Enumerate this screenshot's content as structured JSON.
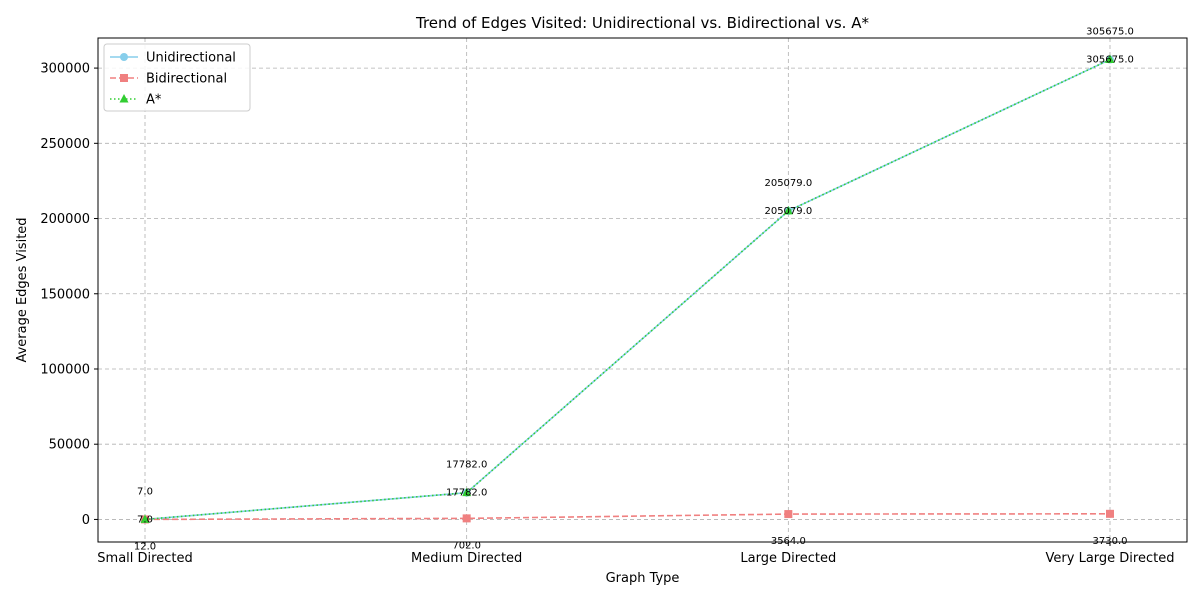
{
  "chart_data": {
    "type": "line",
    "title": "Trend of Edges Visited: Unidirectional vs. Bidirectional vs. A*",
    "xlabel": "Graph Type",
    "ylabel": "Average Edges Visited",
    "categories": [
      "Small Directed",
      "Medium Directed",
      "Large Directed",
      "Very Large Directed"
    ],
    "ylim": [
      -15000,
      320000
    ],
    "yticks": [
      0,
      50000,
      100000,
      150000,
      200000,
      250000,
      300000
    ],
    "ytick_labels": [
      "0",
      "50000",
      "100000",
      "150000",
      "200000",
      "250000",
      "300000"
    ],
    "grid": true,
    "legend_position": "top-left",
    "series": [
      {
        "name": "Unidirectional",
        "values": [
          7,
          17782,
          205079,
          305675
        ],
        "value_labels": [
          "7.0",
          "17782.0",
          "205079.0",
          "305675.0"
        ],
        "color": "#87ceeb",
        "line_style": "solid",
        "marker": "circle"
      },
      {
        "name": "Bidirectional",
        "values": [
          12,
          702,
          3564,
          3730
        ],
        "value_labels": [
          "12.0",
          "702.0",
          "3564.0",
          "3730.0"
        ],
        "color": "#f08080",
        "line_style": "dashed",
        "marker": "square"
      },
      {
        "name": "A*",
        "values": [
          7,
          17782,
          205079,
          305675
        ],
        "value_labels": [
          "7.0",
          "17782.0",
          "205079.0",
          "305675.0"
        ],
        "color": "#32cd32",
        "line_style": "dotted",
        "marker": "triangle"
      }
    ]
  }
}
